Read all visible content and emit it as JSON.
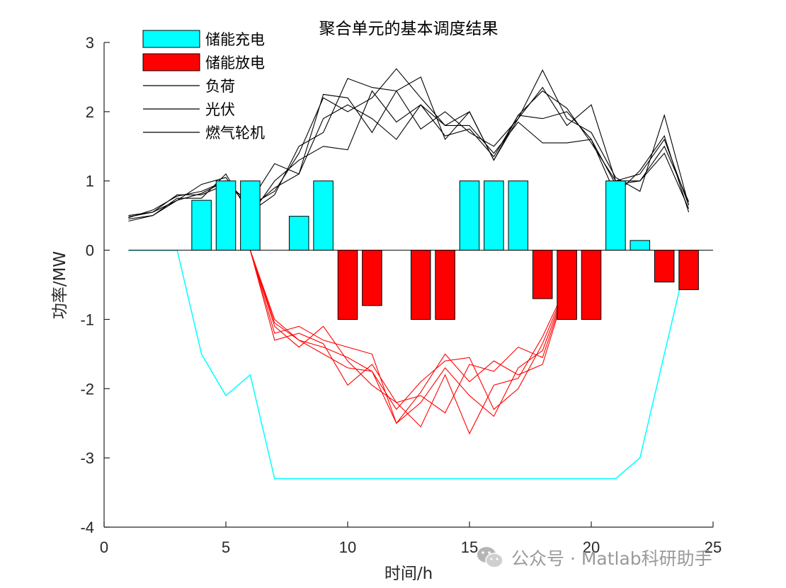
{
  "chart_data": {
    "type": "bar",
    "title": "聚合单元的基本调度结果",
    "xlabel": "时间/h",
    "ylabel": "功率/MW",
    "xlim": [
      0,
      25
    ],
    "ylim": [
      -4,
      3
    ],
    "xticks": [
      "0",
      "5",
      "10",
      "15",
      "20",
      "25"
    ],
    "yticks": [
      "3",
      "2",
      "1",
      "0",
      "-1",
      "-2",
      "-3",
      "-4"
    ],
    "legend_position": "top-left",
    "legend": [
      {
        "label": "储能充电",
        "kind": "bar",
        "color": "#00ffff"
      },
      {
        "label": "储能放电",
        "kind": "bar",
        "color": "#ff0000"
      },
      {
        "label": "负荷",
        "kind": "line",
        "color": "#000000"
      },
      {
        "label": "光伏",
        "kind": "line",
        "color": "#000000"
      },
      {
        "label": "燃气轮机",
        "kind": "line",
        "color": "#000000"
      }
    ],
    "bar_series": [
      {
        "name": "储能充电",
        "color": "#00ffff",
        "x": [
          4,
          5,
          6,
          8,
          9,
          15,
          16,
          17,
          21,
          22
        ],
        "values": [
          0.72,
          1.0,
          1.0,
          0.49,
          1.0,
          1.0,
          1.0,
          1.0,
          1.0,
          0.14
        ]
      },
      {
        "name": "储能放电",
        "color": "#ff0000",
        "x": [
          10,
          11,
          13,
          14,
          18,
          19,
          20,
          23,
          24
        ],
        "values": [
          -1.0,
          -0.8,
          -1.0,
          -1.0,
          -0.7,
          -1.0,
          -1.0,
          -0.46,
          -0.57
        ]
      }
    ],
    "cyan_line": {
      "color": "#00ffff",
      "x": [
        1,
        2,
        3,
        4,
        5,
        6,
        7,
        8,
        9,
        10,
        11,
        12,
        13,
        14,
        15,
        16,
        17,
        18,
        19,
        20,
        21,
        22,
        23,
        24
      ],
      "y": [
        0,
        0,
        0,
        -1.5,
        -2.1,
        -1.8,
        -3.3,
        -3.3,
        -3.3,
        -3.3,
        -3.3,
        -3.3,
        -3.3,
        -3.3,
        -3.3,
        -3.3,
        -3.3,
        -3.3,
        -3.3,
        -3.3,
        -3.3,
        -3.0,
        -1.5,
        0
      ]
    },
    "black_lines": {
      "color": "#000000",
      "x": [
        1,
        2,
        3,
        4,
        5,
        6,
        7,
        8,
        9,
        10,
        11,
        12,
        13,
        14,
        15,
        16,
        17,
        18,
        19,
        20,
        21,
        22,
        23,
        24
      ],
      "series": [
        [
          0.45,
          0.5,
          0.72,
          0.82,
          1.0,
          0.6,
          0.9,
          1.1,
          1.9,
          2.1,
          1.9,
          1.6,
          2.1,
          1.65,
          1.75,
          1.35,
          1.95,
          1.9,
          2.0,
          1.6,
          0.95,
          1.0,
          1.4,
          0.6
        ],
        [
          0.48,
          0.55,
          0.8,
          0.8,
          0.95,
          0.7,
          1.25,
          1.1,
          2.25,
          2.2,
          1.7,
          2.3,
          2.5,
          1.6,
          2.0,
          1.3,
          1.9,
          2.6,
          1.9,
          1.7,
          1.05,
          0.85,
          1.95,
          0.65
        ],
        [
          0.5,
          0.55,
          0.72,
          0.95,
          1.05,
          0.55,
          0.8,
          1.5,
          1.7,
          2.48,
          2.35,
          2.3,
          1.75,
          2.0,
          1.7,
          1.5,
          1.9,
          2.35,
          1.8,
          2.1,
          1.0,
          1.0,
          1.5,
          0.7
        ],
        [
          0.42,
          0.5,
          0.75,
          0.75,
          1.1,
          0.5,
          1.0,
          1.3,
          1.5,
          1.45,
          2.3,
          1.85,
          2.1,
          1.8,
          1.8,
          1.4,
          1.85,
          1.55,
          1.55,
          1.6,
          0.8,
          1.15,
          1.65,
          0.55
        ],
        [
          0.47,
          0.58,
          0.78,
          0.85,
          1.0,
          0.65,
          0.85,
          1.4,
          2.2,
          2.0,
          2.2,
          2.62,
          2.2,
          1.8,
          2.0,
          1.3,
          1.95,
          2.3,
          2.05,
          1.55,
          1.0,
          1.1,
          1.6,
          0.65
        ]
      ]
    },
    "red_lines": {
      "color": "#ff0000",
      "x": [
        6,
        7,
        8,
        9,
        10,
        11,
        12,
        13,
        14,
        15,
        16,
        17,
        18,
        19
      ],
      "series": [
        [
          0,
          -1.05,
          -1.3,
          -1.4,
          -1.55,
          -1.75,
          -2.5,
          -2.2,
          -1.7,
          -2.1,
          -2.4,
          -1.7,
          -1.45,
          -0.5
        ],
        [
          0,
          -1.3,
          -1.2,
          -1.35,
          -1.95,
          -1.65,
          -2.2,
          -2.55,
          -1.8,
          -2.65,
          -1.95,
          -1.85,
          -1.25,
          -0.5
        ],
        [
          0,
          -1.1,
          -1.4,
          -1.1,
          -1.6,
          -1.95,
          -2.2,
          -2.1,
          -2.35,
          -1.65,
          -1.75,
          -1.4,
          -1.55,
          -0.5
        ],
        [
          0,
          -1.0,
          -1.3,
          -1.5,
          -1.7,
          -1.75,
          -2.3,
          -1.9,
          -1.6,
          -1.55,
          -2.3,
          -2.0,
          -1.35,
          -0.5
        ],
        [
          0,
          -1.2,
          -1.1,
          -1.3,
          -1.4,
          -1.5,
          -2.5,
          -2.05,
          -1.5,
          -1.9,
          -1.6,
          -1.8,
          -1.65,
          -0.5
        ]
      ]
    }
  },
  "watermark": {
    "text": "公众号 · Matlab科研助手",
    "icon": "wechat-icon"
  }
}
